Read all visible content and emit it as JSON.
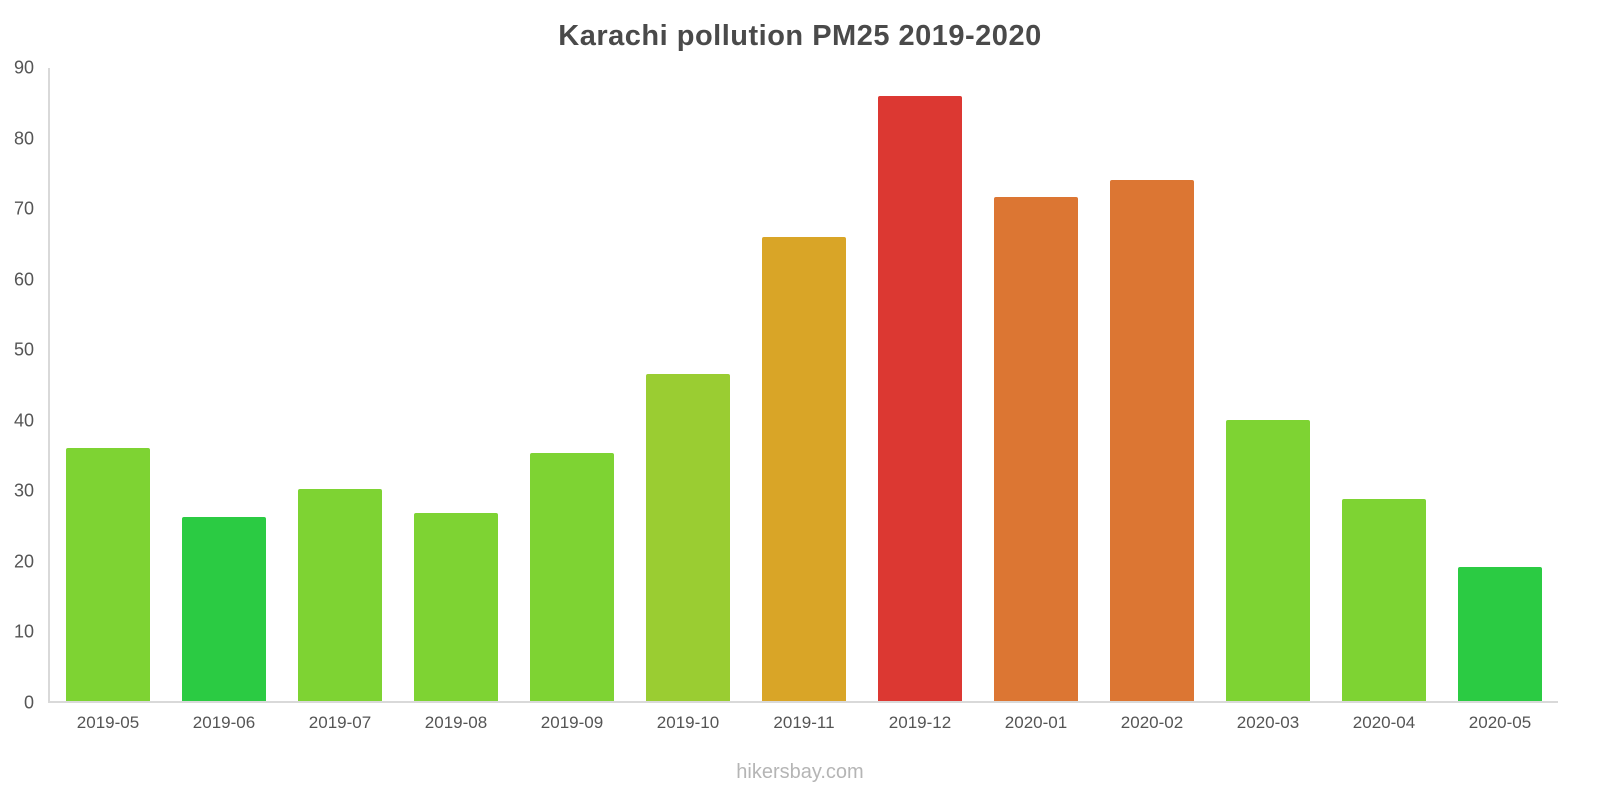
{
  "title": "Karachi pollution PM25 2019-2020",
  "watermark": "hikersbay.com",
  "chart_data": {
    "type": "bar",
    "title": "Karachi pollution PM25 2019-2020",
    "xlabel": "",
    "ylabel": "",
    "ylim": [
      0,
      90
    ],
    "yticks": [
      0,
      10,
      20,
      30,
      40,
      50,
      60,
      70,
      80,
      90
    ],
    "grid": false,
    "legend": "none",
    "categories": [
      "2019-05",
      "2019-06",
      "2019-07",
      "2019-08",
      "2019-09",
      "2019-10",
      "2019-11",
      "2019-12",
      "2020-01",
      "2020-02",
      "2020-03",
      "2020-04",
      "2020-05"
    ],
    "values": [
      36,
      26.1,
      30.1,
      26.8,
      35.3,
      46.5,
      66,
      86,
      71.6,
      74.1,
      40,
      28.7,
      19
    ],
    "colors": [
      "#7ED333",
      "#2BCB43",
      "#7ED333",
      "#7ED333",
      "#7ED333",
      "#9ACD32",
      "#D9A527",
      "#DC3832",
      "#DC7633",
      "#DC7633",
      "#7ED333",
      "#7ED333",
      "#2BCB43"
    ]
  },
  "colors": {
    "axis": "#d9d9d9",
    "tick_label": "#555555",
    "title": "#4a4a4a",
    "watermark": "#b5b5b5"
  }
}
